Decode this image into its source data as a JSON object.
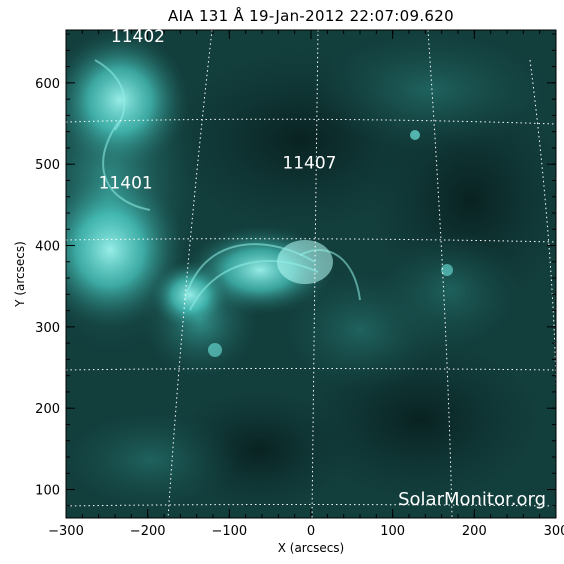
{
  "title": "AIA 131 Å 19-Jan-2012 22:07:09.620",
  "watermark": "SolarMonitor.org",
  "x_axis": {
    "label": "X (arcsecs)",
    "range": [
      -300,
      300
    ],
    "ticks": [
      -300,
      -200,
      -100,
      0,
      100,
      200,
      300
    ],
    "tick_labels": [
      "−300",
      "−200",
      "−100",
      "0",
      "100",
      "200",
      "300"
    ]
  },
  "y_axis": {
    "label": "Y (arcsecs)",
    "range": [
      65,
      665
    ],
    "ticks": [
      100,
      200,
      300,
      400,
      500,
      600
    ],
    "tick_labels": [
      "100",
      "200",
      "300",
      "400",
      "500",
      "600"
    ]
  },
  "active_regions": [
    {
      "label": "11402",
      "x": -245,
      "y": 650
    },
    {
      "label": "11401",
      "x": -260,
      "y": 470
    },
    {
      "label": "11407",
      "x": -35,
      "y": 495
    }
  ],
  "colors": {
    "background": "#ffffff",
    "sun_dark": "#0b2a2a",
    "sun_mid": "#1f5f5c",
    "sun_bright": "#4fd8cf",
    "grid": "#ffffff"
  }
}
